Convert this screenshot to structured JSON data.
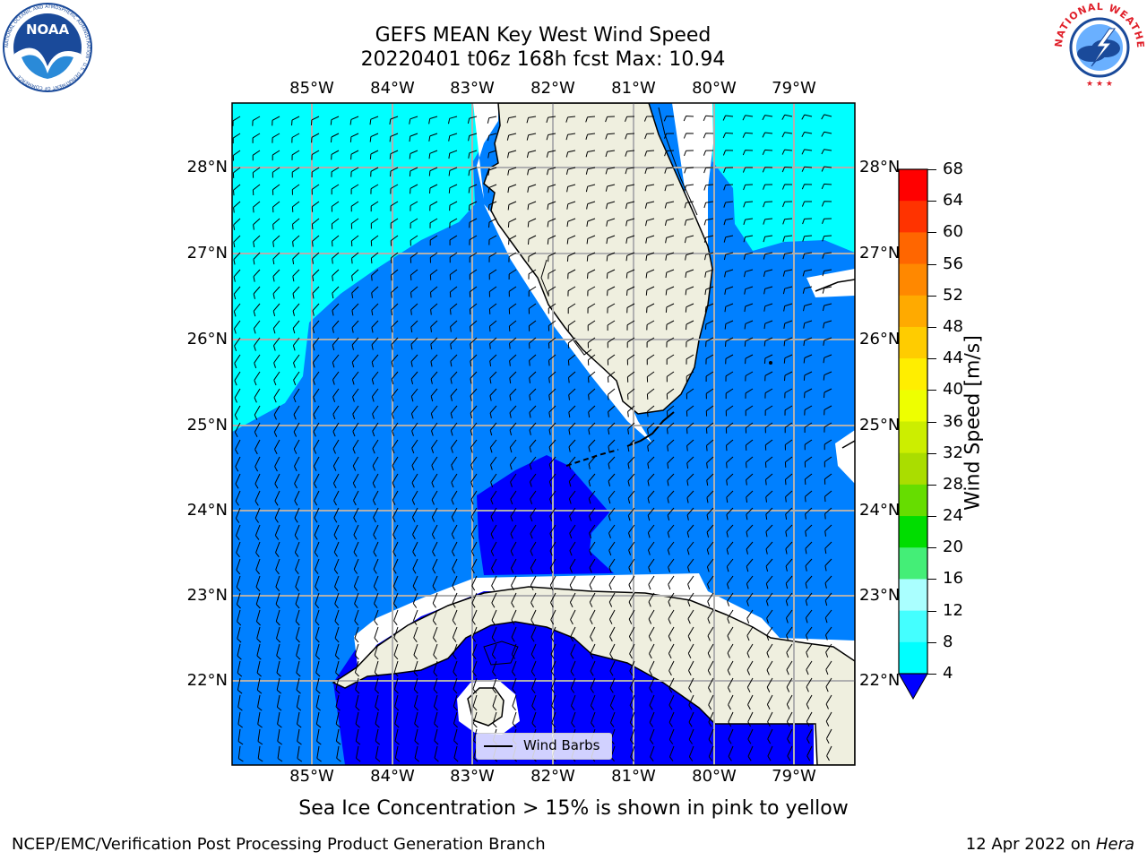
{
  "header": {
    "title_line1": "GEFS MEAN Key West Wind Speed",
    "title_line2": "20220401 t06z 168h fcst   Max: 10.94"
  },
  "logos": {
    "left": {
      "text": "NOAA",
      "ring_text": "NATIONAL OCEANIC AND ATMOSPHERIC ADMINISTRATION · U.S. DEPARTMENT OF COMMERCE",
      "color": "#1a4a9a"
    },
    "right": {
      "ring_text": "NATIONAL WEATHER SERVICE",
      "color": "#e0202a"
    }
  },
  "map": {
    "lon_labels": [
      "85°W",
      "84°W",
      "83°W",
      "82°W",
      "81°W",
      "80°W",
      "79°W"
    ],
    "lat_labels": [
      "28°N",
      "27°N",
      "26°N",
      "25°N",
      "24°N",
      "23°N",
      "22°N"
    ],
    "ocean_colors": {
      "band_4_8": "#0080ff",
      "band_8_12": "#00ffff",
      "below_4": "#0000ff"
    },
    "land_color": "#efefdf",
    "legend_label": "Wind Barbs"
  },
  "colorbar": {
    "label": "Wind Speed [m/s]",
    "ticks": [
      "68",
      "64",
      "60",
      "56",
      "52",
      "48",
      "44",
      "40",
      "36",
      "32",
      "28",
      "24",
      "20",
      "16",
      "12",
      "8",
      "4"
    ],
    "colors": [
      "#ff0000",
      "#ff3300",
      "#ff6600",
      "#ff8800",
      "#ffaa00",
      "#ffcc00",
      "#ffee00",
      "#eeff00",
      "#ccee00",
      "#aadd00",
      "#66dd00",
      "#00dd00",
      "#44ee77",
      "#aaffff",
      "#44ffff",
      "#00ffff",
      "#0080ff"
    ],
    "under_color": "#0000ff"
  },
  "caption": "Sea Ice Concentration > 15% is shown in pink to yellow",
  "footer": {
    "left": "NCEP/EMC/Verification Post Processing Product Generation Branch",
    "date": "12 Apr 2022 on ",
    "host": "Hera"
  }
}
